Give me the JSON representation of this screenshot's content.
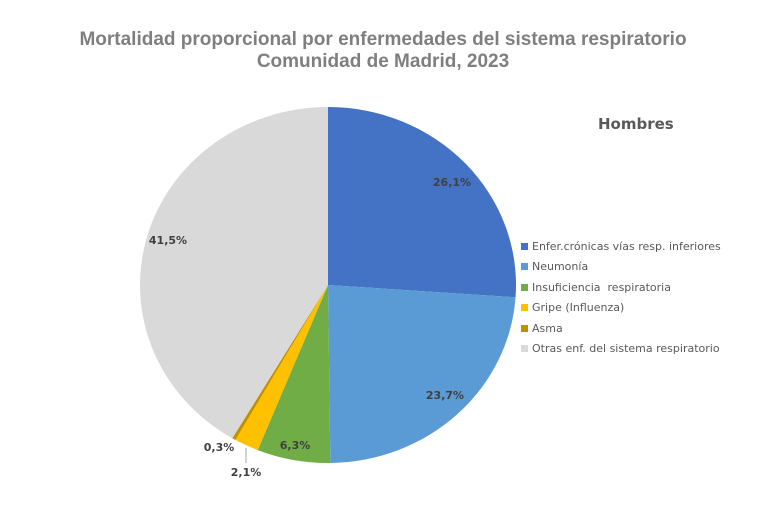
{
  "chart_data": {
    "type": "pie",
    "title": "Mortalidad proporcional por enfermedades del sistema respiratorio",
    "subtitle": "Comunidad de Madrid, 2023",
    "series_label": "Hombres",
    "legend_position": "right",
    "slices": [
      {
        "name": "Enfer.crónicas vías resp. inferiores",
        "value": 26.1,
        "label": "26,1%",
        "color": "#4472c4"
      },
      {
        "name": "Neumonía",
        "value": 23.7,
        "label": "23,7%",
        "color": "#5b9bd5"
      },
      {
        "name": "Insuficiencia  respiratoria",
        "value": 6.3,
        "label": "6,3%",
        "color": "#70ad47"
      },
      {
        "name": "Gripe (Influenza)",
        "value": 2.1,
        "label": "2,1%",
        "color": "#ffc000"
      },
      {
        "name": "Asma",
        "value": 0.3,
        "label": "0,3%",
        "color": "#bf9000"
      },
      {
        "name": "Otras enf. del sistema respiratorio",
        "value": 41.5,
        "label": "41,5%",
        "color": "#d9d9d9"
      }
    ]
  }
}
